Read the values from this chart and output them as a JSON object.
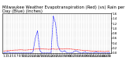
{
  "title": "Milwaukee Weather Evapotranspiration (Red) (vs) Rain per Day (Blue) (Inches)",
  "rain": [
    0.0,
    0.02,
    0.05,
    0.0,
    0.0,
    0.0,
    0.0,
    0.0,
    0.0,
    0.0,
    0.0,
    0.0,
    0.0,
    0.05,
    0.6,
    0.9,
    0.1,
    0.0,
    0.0,
    0.0,
    0.0,
    0.0,
    1.5,
    1.2,
    0.3,
    0.1,
    0.05,
    0.1,
    0.0,
    0.0,
    0.0,
    0.05,
    0.1,
    0.05,
    0.0,
    0.0,
    0.05,
    0.0,
    0.0,
    0.0,
    0.0,
    0.05,
    0.0,
    0.0,
    0.0,
    0.0,
    0.0,
    0.02
  ],
  "et": [
    0.08,
    0.09,
    0.1,
    0.1,
    0.11,
    0.12,
    0.12,
    0.13,
    0.13,
    0.12,
    0.12,
    0.13,
    0.14,
    0.15,
    0.16,
    0.17,
    0.18,
    0.17,
    0.16,
    0.16,
    0.15,
    0.16,
    0.17,
    0.15,
    0.16,
    0.17,
    0.16,
    0.17,
    0.18,
    0.17,
    0.16,
    0.15,
    0.14,
    0.13,
    0.12,
    0.11,
    0.1,
    0.1,
    0.09,
    0.08,
    0.08,
    0.08,
    0.07,
    0.07,
    0.06,
    0.06,
    0.07,
    0.07
  ],
  "ylim": [
    0,
    1.6
  ],
  "rain_color": "#0000ff",
  "et_color": "#ff0000",
  "bg_color": "#ffffff",
  "grid_color": "#888888",
  "title_fontsize": 3.8,
  "tick_fontsize": 2.8,
  "fig_width": 1.6,
  "fig_height": 0.87,
  "dpi": 100
}
